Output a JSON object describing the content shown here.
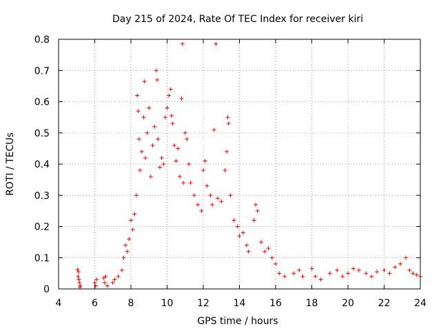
{
  "chart_data": {
    "type": "scatter",
    "title": "Day 215 of 2024, Rate Of TEC Index for receiver kiri",
    "xlabel": "GPS time / hours",
    "ylabel": "ROTI / TECUs",
    "xlim": [
      4,
      24
    ],
    "ylim": [
      0,
      0.8
    ],
    "xticks": [
      4,
      6,
      8,
      10,
      12,
      14,
      16,
      18,
      20,
      22,
      24
    ],
    "yticks": [
      0,
      0.1,
      0.2,
      0.3,
      0.4,
      0.5,
      0.6,
      0.7,
      0.8
    ],
    "xtick_labels": [
      "4",
      "6",
      "8",
      "10",
      "12",
      "14",
      "16",
      "18",
      "20",
      "22",
      "24"
    ],
    "ytick_labels": [
      "0",
      "0.1",
      "0.2",
      "0.3",
      "0.4",
      "0.5",
      "0.6",
      "0.7",
      "0.8"
    ],
    "grid": true,
    "marker": "+",
    "color": "#ff0000",
    "series": [
      {
        "name": "ROTI",
        "points": [
          [
            5.05,
            0.062
          ],
          [
            5.1,
            0.055
          ],
          [
            5.12,
            0.03
          ],
          [
            5.15,
            0.02
          ],
          [
            5.2,
            0.01
          ],
          [
            5.08,
            0.04
          ],
          [
            5.18,
            0.005
          ],
          [
            6.0,
            0.02
          ],
          [
            6.05,
            0.01
          ],
          [
            6.1,
            0.03
          ],
          [
            6.5,
            0.035
          ],
          [
            6.55,
            0.02
          ],
          [
            6.6,
            0.04
          ],
          [
            6.7,
            0.01
          ],
          [
            7.0,
            0.02
          ],
          [
            7.1,
            0.03
          ],
          [
            7.3,
            0.04
          ],
          [
            7.5,
            0.06
          ],
          [
            7.6,
            0.1
          ],
          [
            7.7,
            0.14
          ],
          [
            7.8,
            0.12
          ],
          [
            7.9,
            0.16
          ],
          [
            8.0,
            0.22
          ],
          [
            8.1,
            0.19
          ],
          [
            8.2,
            0.24
          ],
          [
            8.3,
            0.3
          ],
          [
            8.35,
            0.62
          ],
          [
            8.4,
            0.57
          ],
          [
            8.45,
            0.48
          ],
          [
            8.5,
            0.38
          ],
          [
            8.6,
            0.44
          ],
          [
            8.7,
            0.55
          ],
          [
            8.75,
            0.665
          ],
          [
            8.8,
            0.42
          ],
          [
            8.9,
            0.5
          ],
          [
            9.0,
            0.58
          ],
          [
            9.1,
            0.36
          ],
          [
            9.2,
            0.46
          ],
          [
            9.3,
            0.52
          ],
          [
            9.4,
            0.7
          ],
          [
            9.45,
            0.67
          ],
          [
            9.5,
            0.48
          ],
          [
            9.6,
            0.39
          ],
          [
            9.7,
            0.42
          ],
          [
            9.8,
            0.4
          ],
          [
            9.9,
            0.55
          ],
          [
            10.0,
            0.58
          ],
          [
            10.1,
            0.62
          ],
          [
            10.2,
            0.64
          ],
          [
            10.25,
            0.555
          ],
          [
            10.3,
            0.53
          ],
          [
            10.4,
            0.46
          ],
          [
            10.5,
            0.41
          ],
          [
            10.6,
            0.45
          ],
          [
            10.7,
            0.36
          ],
          [
            10.8,
            0.61
          ],
          [
            10.85,
            0.785
          ],
          [
            10.9,
            0.34
          ],
          [
            11.0,
            0.5
          ],
          [
            11.1,
            0.48
          ],
          [
            11.2,
            0.4
          ],
          [
            11.3,
            0.34
          ],
          [
            11.5,
            0.3
          ],
          [
            11.7,
            0.27
          ],
          [
            11.9,
            0.25
          ],
          [
            12.0,
            0.38
          ],
          [
            12.1,
            0.41
          ],
          [
            12.2,
            0.33
          ],
          [
            12.4,
            0.3
          ],
          [
            12.5,
            0.27
          ],
          [
            12.6,
            0.51
          ],
          [
            12.7,
            0.785
          ],
          [
            12.8,
            0.29
          ],
          [
            13.0,
            0.28
          ],
          [
            13.2,
            0.38
          ],
          [
            13.3,
            0.44
          ],
          [
            13.35,
            0.55
          ],
          [
            13.4,
            0.53
          ],
          [
            13.5,
            0.3
          ],
          [
            13.7,
            0.22
          ],
          [
            13.9,
            0.2
          ],
          [
            14.0,
            0.17
          ],
          [
            14.2,
            0.18
          ],
          [
            14.4,
            0.14
          ],
          [
            14.5,
            0.12
          ],
          [
            14.8,
            0.22
          ],
          [
            14.9,
            0.27
          ],
          [
            15.0,
            0.25
          ],
          [
            15.2,
            0.15
          ],
          [
            15.4,
            0.12
          ],
          [
            15.6,
            0.13
          ],
          [
            15.8,
            0.1
          ],
          [
            16.0,
            0.08
          ],
          [
            16.2,
            0.05
          ],
          [
            16.5,
            0.04
          ],
          [
            17.0,
            0.05
          ],
          [
            17.3,
            0.06
          ],
          [
            17.5,
            0.04
          ],
          [
            18.0,
            0.065
          ],
          [
            18.2,
            0.04
          ],
          [
            18.5,
            0.03
          ],
          [
            19.0,
            0.05
          ],
          [
            19.4,
            0.06
          ],
          [
            19.7,
            0.04
          ],
          [
            20.0,
            0.05
          ],
          [
            20.3,
            0.065
          ],
          [
            20.6,
            0.06
          ],
          [
            21.0,
            0.05
          ],
          [
            21.3,
            0.04
          ],
          [
            21.6,
            0.055
          ],
          [
            22.0,
            0.06
          ],
          [
            22.3,
            0.05
          ],
          [
            22.6,
            0.07
          ],
          [
            22.9,
            0.08
          ],
          [
            23.2,
            0.1
          ],
          [
            23.4,
            0.06
          ],
          [
            23.6,
            0.05
          ],
          [
            23.8,
            0.045
          ],
          [
            24.0,
            0.04
          ]
        ]
      }
    ]
  }
}
